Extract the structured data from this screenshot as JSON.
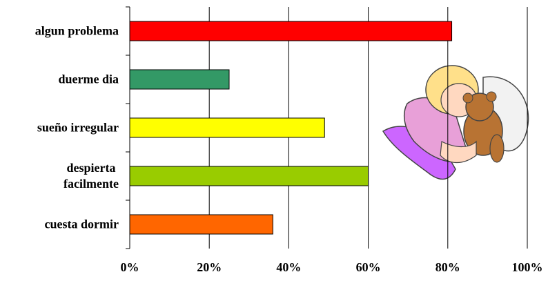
{
  "chart_data": {
    "type": "barh",
    "categories": [
      "algun problema",
      "duerme dia",
      "sueño irregular",
      "despierta\nfacilmente",
      "cuesta dormir"
    ],
    "values": [
      81,
      25,
      49,
      60,
      36
    ],
    "colors": [
      "#ff0000",
      "#339966",
      "#ffff00",
      "#99cc00",
      "#ff6600"
    ],
    "xlim": [
      0,
      100
    ],
    "xticks": [
      {
        "value": 0,
        "label": "0%"
      },
      {
        "value": 20,
        "label": "20%"
      },
      {
        "value": 40,
        "label": "40%"
      },
      {
        "value": 60,
        "label": "60%"
      },
      {
        "value": 80,
        "label": "80%"
      },
      {
        "value": 100,
        "label": "100%"
      }
    ],
    "grid": true
  }
}
